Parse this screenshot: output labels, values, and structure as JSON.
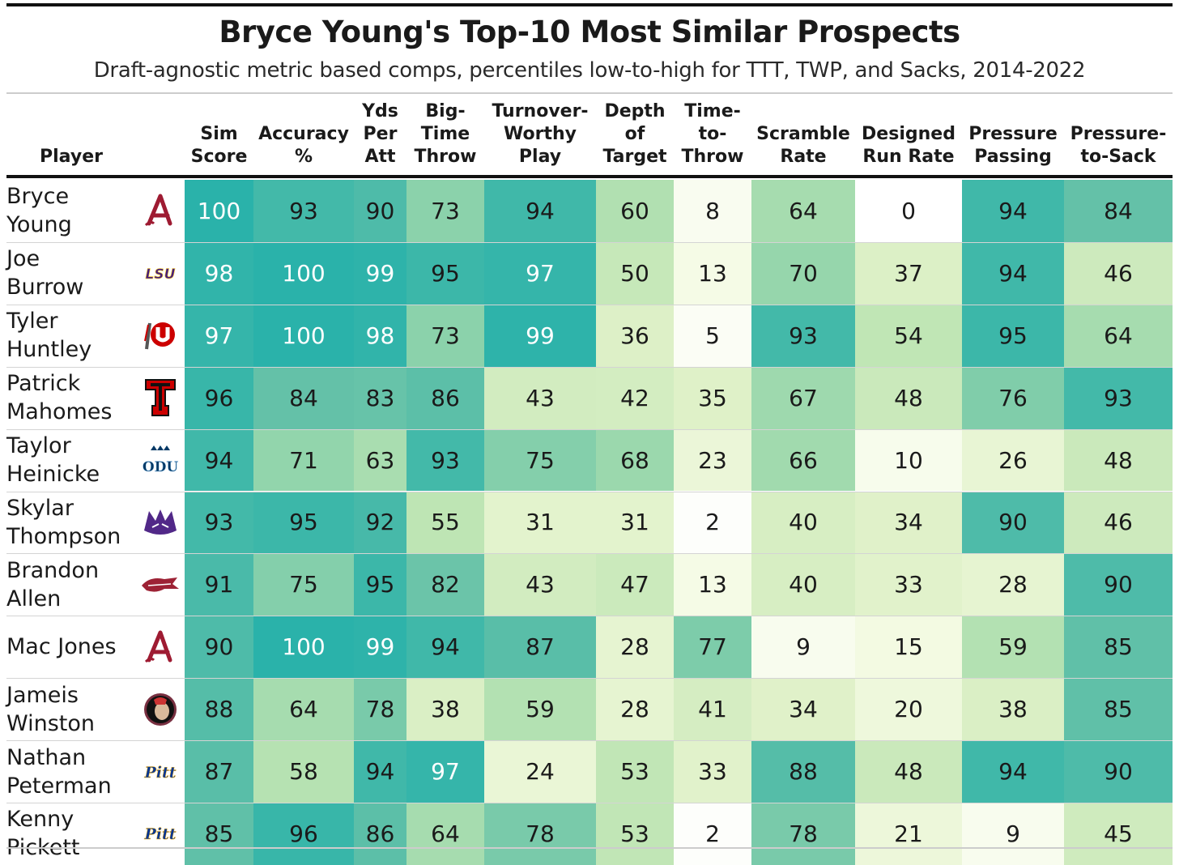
{
  "chart_data": {
    "type": "table",
    "title": "Bryce Young's Top-10 Most Similar Prospects",
    "subtitle": "Draft-agnostic metric based comps, percentiles low-to-high for TTT, TWP, and Sacks, 2014-2022",
    "columns": [
      "Player",
      "Sim\nScore",
      "Accuracy\n%",
      "Yds\nPer\nAtt",
      "Big-\nTime\nThrow",
      "Turnover-\nWorthy\nPlay",
      "Depth\nof\nTarget",
      "Time-\nto-\nThrow",
      "Scramble\nRate",
      "Designed\nRun Rate",
      "Pressure\nPassing",
      "Pressure-\nto-Sack"
    ],
    "rows": [
      {
        "player": "Bryce\nYoung",
        "school_logo": "alabama-logo",
        "values": [
          100,
          93,
          90,
          73,
          94,
          60,
          8,
          64,
          0,
          94,
          84
        ]
      },
      {
        "player": "Joe\nBurrow",
        "school_logo": "lsu-logo",
        "values": [
          98,
          100,
          99,
          95,
          97,
          50,
          13,
          70,
          37,
          94,
          46
        ]
      },
      {
        "player": "Tyler\nHuntley",
        "school_logo": "utah-logo",
        "values": [
          97,
          100,
          98,
          73,
          99,
          36,
          5,
          93,
          54,
          95,
          64
        ]
      },
      {
        "player": "Patrick\nMahomes",
        "school_logo": "texas-tech-logo",
        "values": [
          96,
          84,
          83,
          86,
          43,
          42,
          35,
          67,
          48,
          76,
          93
        ]
      },
      {
        "player": "Taylor\nHeinicke",
        "school_logo": "odu-logo",
        "values": [
          94,
          71,
          63,
          93,
          75,
          68,
          23,
          66,
          10,
          26,
          48
        ]
      },
      {
        "player": "Skylar\nThompson",
        "school_logo": "kansas-state-logo",
        "values": [
          93,
          95,
          92,
          55,
          31,
          31,
          2,
          40,
          34,
          90,
          46
        ]
      },
      {
        "player": "Brandon\nAllen",
        "school_logo": "arkansas-logo",
        "values": [
          91,
          75,
          95,
          82,
          43,
          47,
          13,
          40,
          33,
          28,
          90
        ]
      },
      {
        "player": "Mac Jones",
        "school_logo": "alabama-logo",
        "values": [
          90,
          100,
          99,
          94,
          87,
          28,
          77,
          9,
          15,
          59,
          85
        ]
      },
      {
        "player": "Jameis\nWinston",
        "school_logo": "florida-state-logo",
        "values": [
          88,
          64,
          78,
          38,
          59,
          28,
          41,
          34,
          20,
          38,
          85
        ]
      },
      {
        "player": "Nathan\nPeterman",
        "school_logo": "pitt-logo",
        "values": [
          87,
          58,
          94,
          97,
          24,
          53,
          33,
          88,
          48,
          94,
          90
        ]
      },
      {
        "player": "Kenny\nPickett",
        "school_logo": "pitt-logo",
        "values": [
          85,
          96,
          86,
          64,
          78,
          53,
          2,
          78,
          21,
          9,
          45
        ]
      }
    ],
    "logo_text": {
      "lsu": "LSU",
      "odu": "ODU",
      "pitt": "Pitt"
    },
    "color_scale": {
      "low": "#ffffff",
      "mid": "#a9deb0",
      "high": "#2fb5aa",
      "domain": [
        0,
        100
      ]
    }
  }
}
